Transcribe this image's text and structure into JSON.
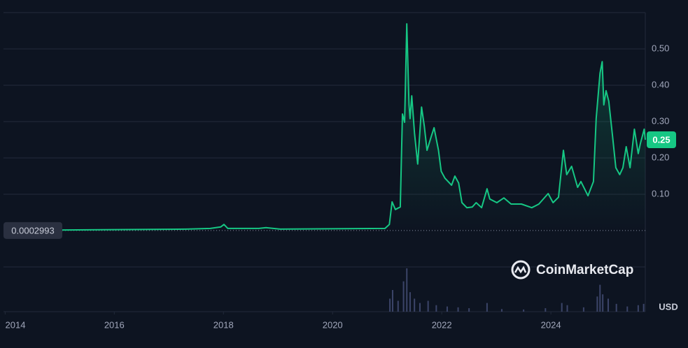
{
  "chart_data": {
    "type": "line",
    "brand": "CoinMarketCap",
    "currency": "USD",
    "start_price": 0.0002993,
    "last_price": 0.25,
    "xlim": [
      2013.97,
      2025.73
    ],
    "xticks": [
      2014,
      2016,
      2018,
      2020,
      2022,
      2024
    ],
    "ylim": [
      -0.1,
      0.6
    ],
    "yticks": [
      {
        "value": 0.1,
        "label": "0.10"
      },
      {
        "value": 0.2,
        "label": "0.20"
      },
      {
        "value": 0.3,
        "label": "0.30"
      },
      {
        "value": 0.4,
        "label": "0.40"
      },
      {
        "value": 0.5,
        "label": "0.50"
      }
    ],
    "grid": true,
    "series": [
      {
        "color": "#16c784",
        "x": [
          2013.97,
          2017.32,
          2017.76,
          2017.95,
          2018.01,
          2018.08,
          2018.65,
          2018.78,
          2019.04,
          2020.96,
          2021.04,
          2021.09,
          2021.15,
          2021.24,
          2021.28,
          2021.32,
          2021.36,
          2021.4,
          2021.42,
          2021.45,
          2021.5,
          2021.56,
          2021.63,
          2021.68,
          2021.73,
          2021.81,
          2021.86,
          2021.94,
          2021.99,
          2022.06,
          2022.18,
          2022.24,
          2022.31,
          2022.37,
          2022.46,
          2022.56,
          2022.63,
          2022.73,
          2022.83,
          2022.88,
          2023.01,
          2023.14,
          2023.27,
          2023.46,
          2023.65,
          2023.78,
          2023.95,
          2024.04,
          2024.14,
          2024.23,
          2024.29,
          2024.38,
          2024.49,
          2024.55,
          2024.68,
          2024.78,
          2024.83,
          2024.9,
          2024.94,
          2024.97,
          2025.01,
          2025.06,
          2025.13,
          2025.19,
          2025.26,
          2025.32,
          2025.38,
          2025.45,
          2025.53,
          2025.6,
          2025.64,
          2025.71,
          2025.73
        ],
        "values": [
          0.0003,
          0.004,
          0.006,
          0.01,
          0.017,
          0.006,
          0.006,
          0.008,
          0.004,
          0.006,
          0.017,
          0.079,
          0.058,
          0.065,
          0.321,
          0.298,
          0.569,
          0.346,
          0.308,
          0.371,
          0.269,
          0.183,
          0.34,
          0.288,
          0.221,
          0.26,
          0.283,
          0.221,
          0.163,
          0.144,
          0.125,
          0.15,
          0.131,
          0.077,
          0.063,
          0.065,
          0.077,
          0.063,
          0.115,
          0.087,
          0.077,
          0.09,
          0.073,
          0.073,
          0.063,
          0.073,
          0.102,
          0.077,
          0.092,
          0.221,
          0.154,
          0.177,
          0.119,
          0.135,
          0.096,
          0.135,
          0.308,
          0.433,
          0.465,
          0.346,
          0.385,
          0.356,
          0.26,
          0.173,
          0.154,
          0.173,
          0.231,
          0.173,
          0.279,
          0.212,
          0.24,
          0.279,
          0.25
        ]
      }
    ],
    "volume": {
      "color": "#3b4468",
      "x": [
        2021.05,
        2021.1,
        2021.2,
        2021.3,
        2021.36,
        2021.42,
        2021.5,
        2021.6,
        2021.75,
        2021.9,
        2022.1,
        2022.3,
        2022.5,
        2022.83,
        2023.1,
        2023.5,
        2023.9,
        2024.2,
        2024.3,
        2024.6,
        2024.85,
        2024.9,
        2024.95,
        2025.05,
        2025.2,
        2025.4,
        2025.6,
        2025.7
      ],
      "values": [
        0.3,
        0.5,
        0.25,
        0.7,
        1.0,
        0.45,
        0.3,
        0.2,
        0.25,
        0.15,
        0.12,
        0.1,
        0.08,
        0.2,
        0.06,
        0.05,
        0.08,
        0.2,
        0.15,
        0.1,
        0.35,
        0.62,
        0.4,
        0.3,
        0.18,
        0.12,
        0.15,
        0.18
      ]
    }
  }
}
